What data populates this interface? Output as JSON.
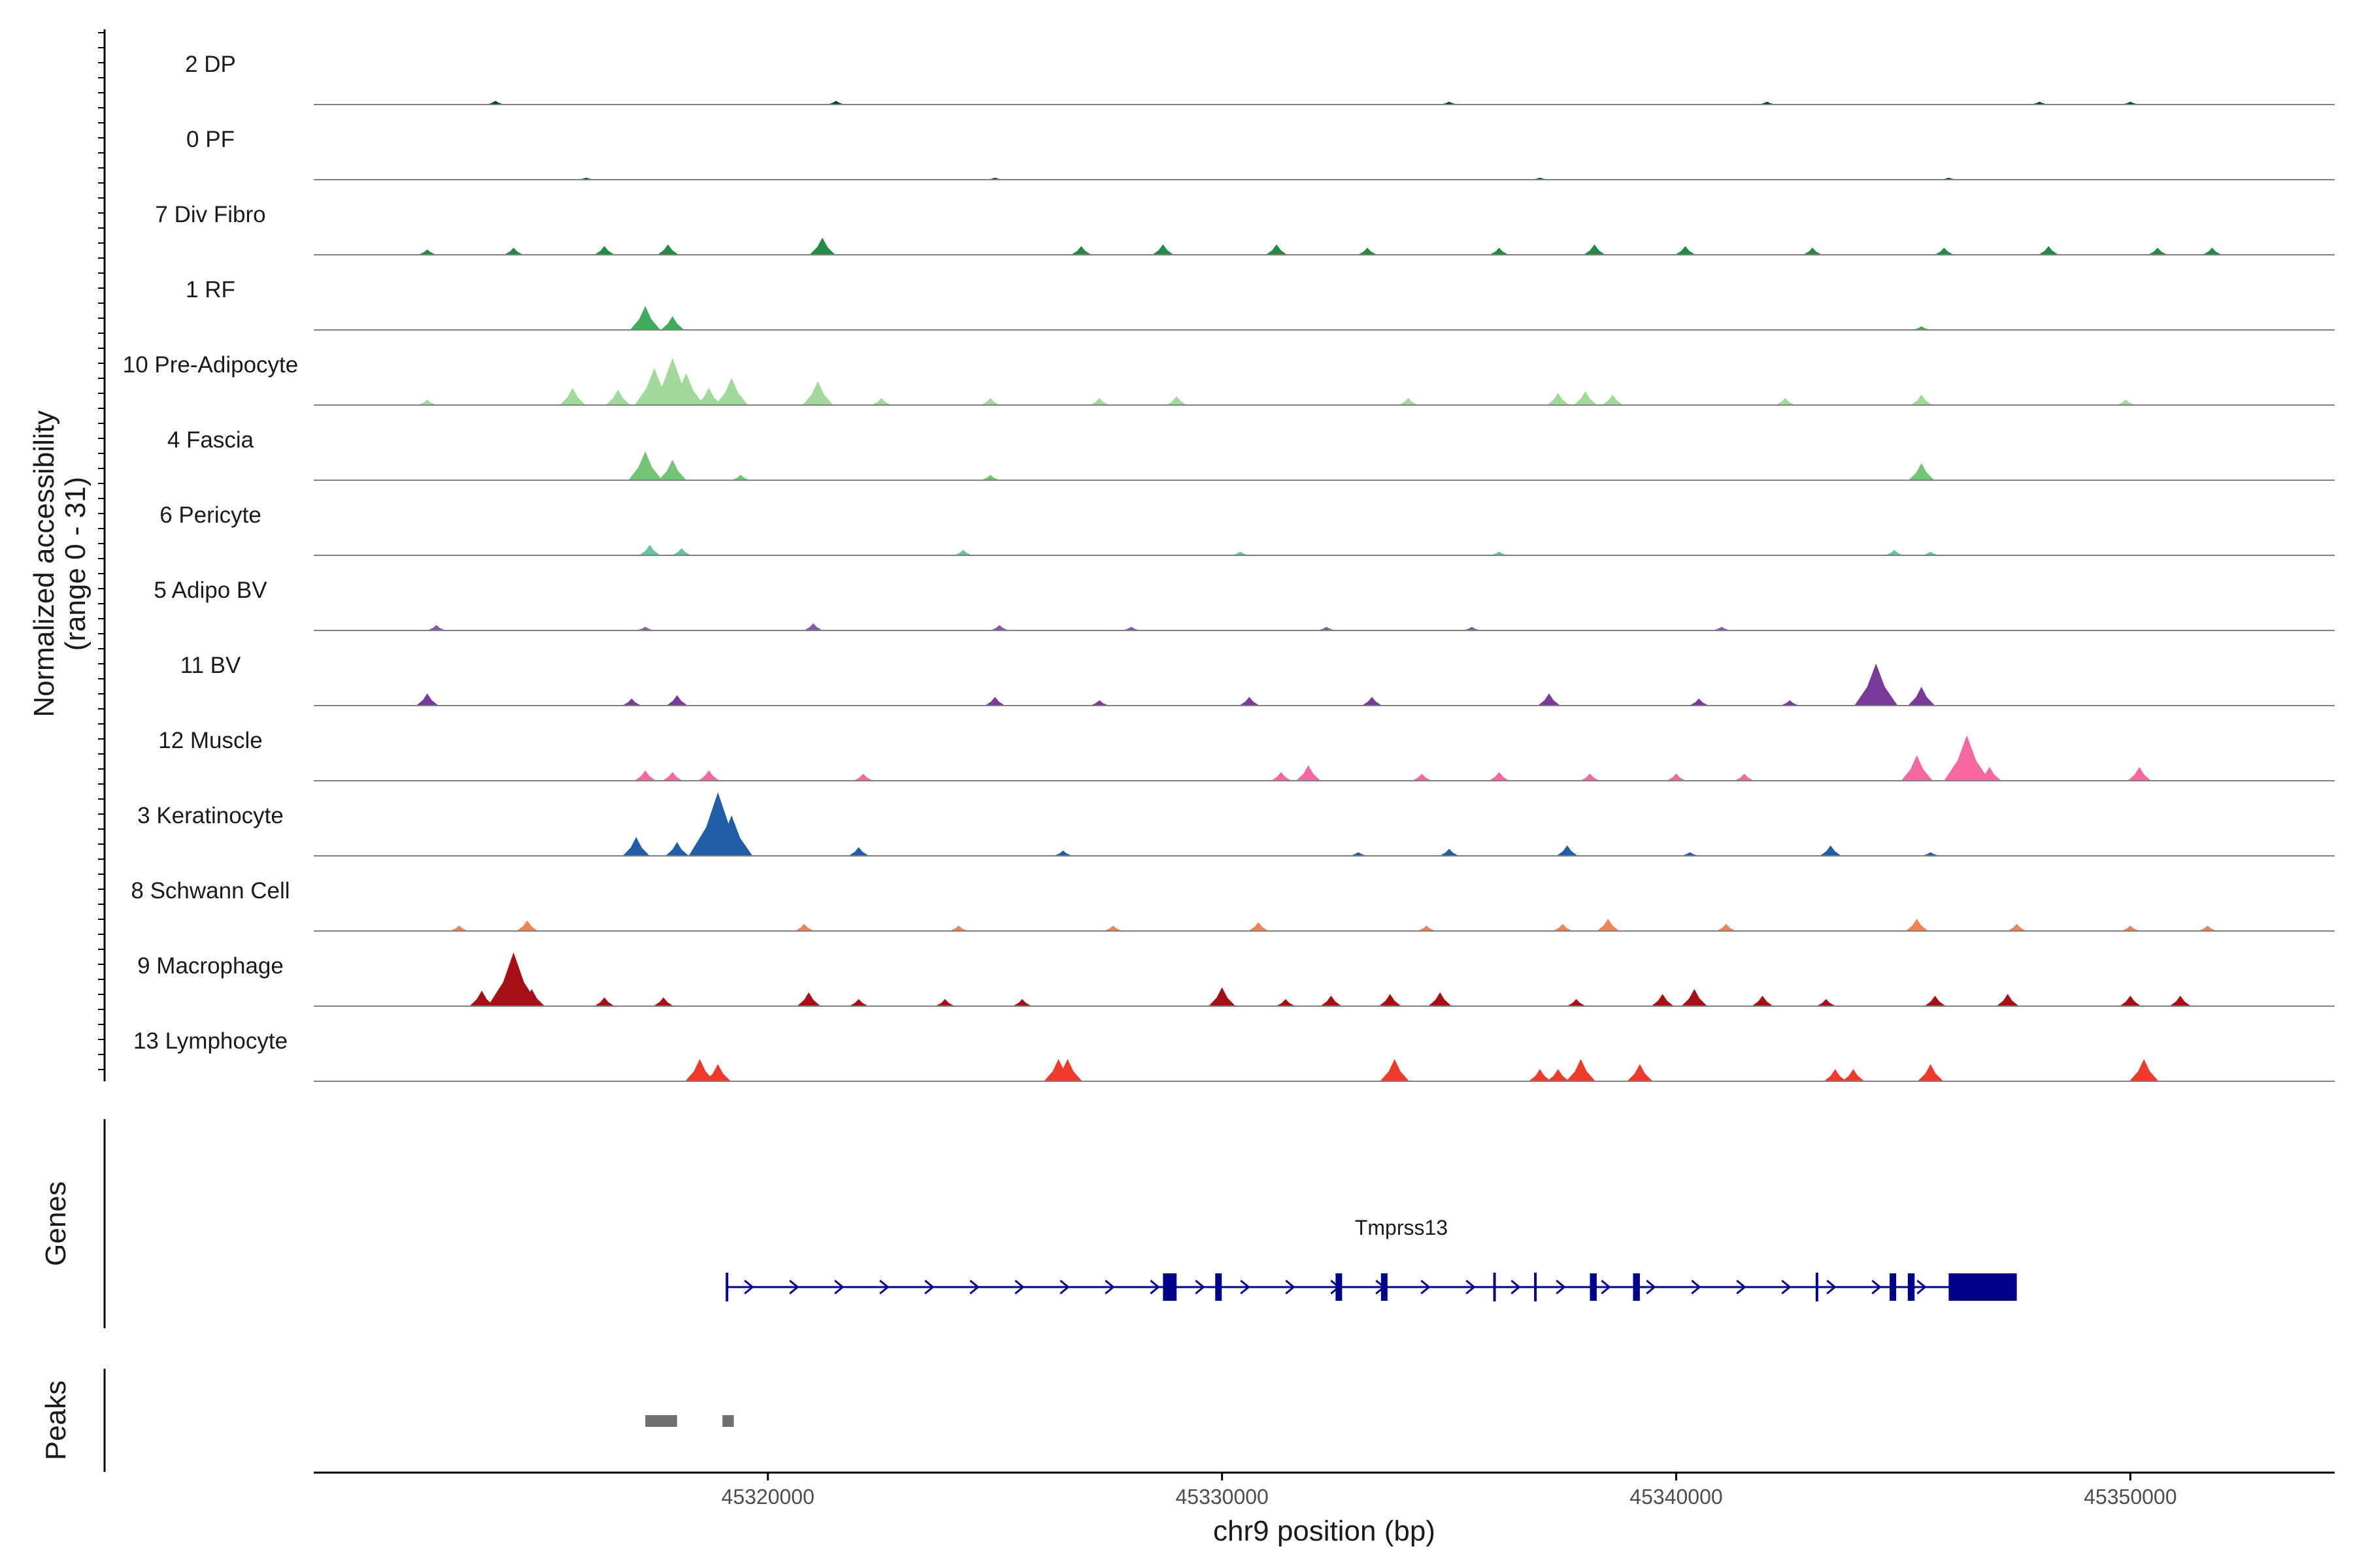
{
  "chart_data": {
    "type": "area",
    "title": "",
    "y_axis_title": "Normalized accessibility",
    "y_axis_subtitle": "(range 0 - 31)",
    "ylim": [
      0,
      31
    ],
    "x_axis_title": "chr9 position (bp)",
    "xlim": [
      45310000,
      45354500
    ],
    "x_ticks": [
      45320000,
      45330000,
      45340000,
      45350000
    ],
    "x_tick_labels": [
      "45320000",
      "45330000",
      "45340000",
      "45350000"
    ],
    "tracks": [
      {
        "name": "2 DP",
        "color": "#00441b",
        "peaks": [
          [
            45314000,
            2
          ],
          [
            45321500,
            2
          ],
          [
            45335000,
            1.5
          ],
          [
            45342000,
            1.5
          ],
          [
            45348000,
            1.5
          ],
          [
            45350000,
            1.5
          ]
        ]
      },
      {
        "name": "0 PF",
        "color": "#00441b",
        "peaks": [
          [
            45316000,
            1
          ],
          [
            45325000,
            1
          ],
          [
            45337000,
            1
          ],
          [
            45346000,
            1
          ]
        ]
      },
      {
        "name": "7 Div Fibro",
        "color": "#238b45",
        "peaks": [
          [
            45312500,
            3
          ],
          [
            45314400,
            4
          ],
          [
            45316400,
            5
          ],
          [
            45317800,
            6
          ],
          [
            45321200,
            10
          ],
          [
            45326900,
            5
          ],
          [
            45328700,
            6
          ],
          [
            45331200,
            6
          ],
          [
            45333200,
            4
          ],
          [
            45336100,
            4
          ],
          [
            45338200,
            6
          ],
          [
            45340200,
            5
          ],
          [
            45343000,
            4
          ],
          [
            45345900,
            4
          ],
          [
            45348200,
            5
          ],
          [
            45350600,
            4
          ],
          [
            45351800,
            4
          ]
        ]
      },
      {
        "name": "1 RF",
        "color": "#41ab5d",
        "peaks": [
          [
            45317300,
            14
          ],
          [
            45317900,
            8
          ],
          [
            45345400,
            2
          ]
        ]
      },
      {
        "name": "10 Pre-Adipocyte",
        "color": "#a1d99b",
        "peaks": [
          [
            45312500,
            3
          ],
          [
            45315700,
            10
          ],
          [
            45316700,
            9
          ],
          [
            45317500,
            22
          ],
          [
            45317900,
            28
          ],
          [
            45318200,
            19
          ],
          [
            45318700,
            10
          ],
          [
            45319200,
            16
          ],
          [
            45321100,
            14
          ],
          [
            45322500,
            4
          ],
          [
            45324900,
            4
          ],
          [
            45327300,
            4
          ],
          [
            45329000,
            5
          ],
          [
            45334100,
            4
          ],
          [
            45337400,
            7
          ],
          [
            45338000,
            8
          ],
          [
            45338600,
            6
          ],
          [
            45342400,
            4
          ],
          [
            45345400,
            6
          ],
          [
            45349900,
            3
          ]
        ]
      },
      {
        "name": "4 Fascia",
        "color": "#74c476",
        "peaks": [
          [
            45317300,
            17
          ],
          [
            45317900,
            12
          ],
          [
            45319400,
            3
          ],
          [
            45324900,
            3
          ],
          [
            45345400,
            10
          ]
        ]
      },
      {
        "name": "6 Pericyte",
        "color": "#66c2a4",
        "peaks": [
          [
            45317400,
            6
          ],
          [
            45318100,
            4
          ],
          [
            45324300,
            3
          ],
          [
            45330400,
            2
          ],
          [
            45336100,
            2
          ],
          [
            45344800,
            3
          ],
          [
            45345600,
            2
          ]
        ]
      },
      {
        "name": "5 Adipo BV",
        "color": "#8856a7",
        "peaks": [
          [
            45312700,
            3
          ],
          [
            45317300,
            2
          ],
          [
            45321000,
            4
          ],
          [
            45325100,
            3
          ],
          [
            45328000,
            2
          ],
          [
            45332300,
            2
          ],
          [
            45335500,
            2
          ],
          [
            45341000,
            2
          ]
        ]
      },
      {
        "name": "11 BV",
        "color": "#7a3a9a",
        "peaks": [
          [
            45312500,
            7
          ],
          [
            45317000,
            4
          ],
          [
            45318000,
            6
          ],
          [
            45325000,
            5
          ],
          [
            45327300,
            3
          ],
          [
            45330600,
            5
          ],
          [
            45333300,
            5
          ],
          [
            45337200,
            7
          ],
          [
            45340500,
            4
          ],
          [
            45342500,
            3
          ],
          [
            45344400,
            25
          ],
          [
            45345400,
            11
          ]
        ]
      },
      {
        "name": "12 Muscle",
        "color": "#f768a1",
        "peaks": [
          [
            45317300,
            6
          ],
          [
            45317900,
            5
          ],
          [
            45318700,
            6
          ],
          [
            45322100,
            4
          ],
          [
            45331300,
            5
          ],
          [
            45331900,
            9
          ],
          [
            45334400,
            4
          ],
          [
            45336100,
            5
          ],
          [
            45338100,
            4
          ],
          [
            45340000,
            4
          ],
          [
            45341500,
            4
          ],
          [
            45345300,
            15
          ],
          [
            45346400,
            27
          ],
          [
            45346900,
            8
          ],
          [
            45350200,
            8
          ]
        ]
      },
      {
        "name": "3 Keratinocyte",
        "color": "#225ea8",
        "peaks": [
          [
            45317100,
            11
          ],
          [
            45318000,
            8
          ],
          [
            45318900,
            38
          ],
          [
            45319200,
            24
          ],
          [
            45322000,
            5
          ],
          [
            45326500,
            3
          ],
          [
            45333000,
            2
          ],
          [
            45335000,
            4
          ],
          [
            45337600,
            6
          ],
          [
            45340300,
            2
          ],
          [
            45343400,
            6
          ],
          [
            45345600,
            2
          ]
        ]
      },
      {
        "name": "8 Schwann Cell",
        "color": "#f4824f",
        "peaks": [
          [
            45313200,
            3
          ],
          [
            45314700,
            6
          ],
          [
            45320800,
            4
          ],
          [
            45324200,
            3
          ],
          [
            45327600,
            3
          ],
          [
            45330800,
            5
          ],
          [
            45334500,
            3
          ],
          [
            45337500,
            4
          ],
          [
            45338500,
            7
          ],
          [
            45341100,
            4
          ],
          [
            45345300,
            7
          ],
          [
            45347500,
            4
          ],
          [
            45350000,
            3
          ],
          [
            45351700,
            3
          ]
        ]
      },
      {
        "name": "9 Macrophage",
        "color": "#a50f15",
        "peaks": [
          [
            45313700,
            9
          ],
          [
            45314400,
            32
          ],
          [
            45314800,
            10
          ],
          [
            45316400,
            5
          ],
          [
            45317700,
            5
          ],
          [
            45320900,
            8
          ],
          [
            45322000,
            4
          ],
          [
            45323900,
            4
          ],
          [
            45325600,
            4
          ],
          [
            45330000,
            11
          ],
          [
            45331400,
            4
          ],
          [
            45332400,
            6
          ],
          [
            45333700,
            7
          ],
          [
            45334800,
            8
          ],
          [
            45337800,
            4
          ],
          [
            45339700,
            7
          ],
          [
            45340400,
            10
          ],
          [
            45341900,
            6
          ],
          [
            45343300,
            4
          ],
          [
            45345700,
            6
          ],
          [
            45347300,
            7
          ],
          [
            45350000,
            6
          ],
          [
            45351100,
            6
          ]
        ]
      },
      {
        "name": "13 Lymphocyte",
        "color": "#ef3b2c",
        "peaks": [
          [
            45318500,
            13
          ],
          [
            45318900,
            10
          ],
          [
            45326400,
            13
          ],
          [
            45326600,
            13
          ],
          [
            45333800,
            13
          ],
          [
            45337000,
            7
          ],
          [
            45337400,
            7
          ],
          [
            45337900,
            13
          ],
          [
            45339200,
            10
          ],
          [
            45343500,
            7
          ],
          [
            45343900,
            7
          ],
          [
            45345600,
            10
          ],
          [
            45350300,
            13
          ]
        ]
      }
    ],
    "genes": {
      "title": "Genes",
      "items": [
        {
          "name": "Tmprss13",
          "strand": "+",
          "start": 45319100,
          "end": 45347500,
          "color": "#00008b",
          "exons": [
            [
              45328700,
              45329000
            ],
            [
              45329850,
              45329950
            ],
            [
              45332500,
              45332600
            ],
            [
              45333500,
              45333600
            ],
            [
              45338100,
              45338250
            ],
            [
              45339050,
              45339200
            ],
            [
              45344700,
              45344800
            ],
            [
              45345100,
              45345250
            ],
            [
              45346000,
              45347500
            ]
          ],
          "thin_exons": [
            45336000,
            45336900,
            45343100
          ]
        }
      ]
    },
    "peaks_track": {
      "title": "Peaks",
      "color": "#707070",
      "regions": [
        [
          45317300,
          45318000
        ],
        [
          45319000,
          45319250
        ]
      ]
    }
  }
}
